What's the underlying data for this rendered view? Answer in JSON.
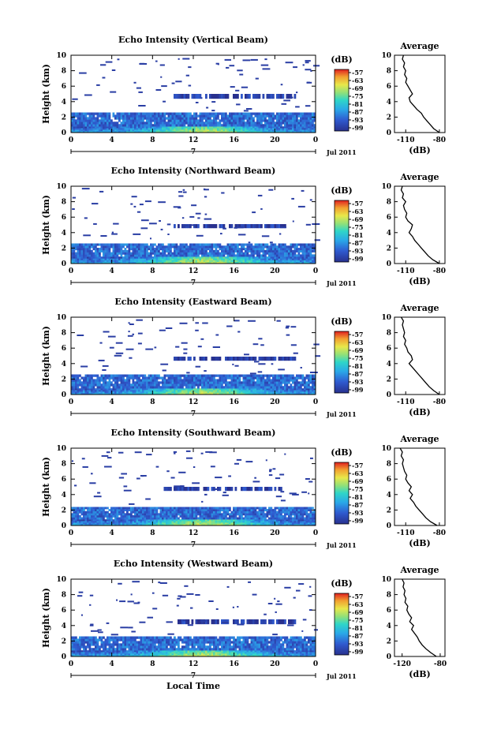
{
  "chart_data": [
    {
      "type": "heatmap",
      "title": "Echo Intensity (Vertical Beam)",
      "ylabel": "Height (km)",
      "ylim": [
        0,
        10
      ],
      "y_ticks": [
        "0",
        "2",
        "4",
        "6",
        "8",
        "10"
      ],
      "xlim": [
        0,
        24
      ],
      "x_ticks": [
        "0",
        "4",
        "8",
        "12",
        "16",
        "20",
        "0"
      ],
      "date_marker": "7",
      "date_label": "Jul 2011",
      "colorbar": {
        "label": "(dB)",
        "ticks": [
          "-57",
          "-63",
          "-69",
          "-75",
          "-81",
          "-87",
          "-93",
          "-99"
        ],
        "range": [
          -99,
          -57
        ]
      },
      "layers": [
        {
          "name": "surface strong echo",
          "y_range": [
            0,
            0.8
          ],
          "intensity_db": -78
        },
        {
          "name": "boundary layer",
          "y_range": [
            0.8,
            2.6
          ],
          "intensity_db": -92
        },
        {
          "name": "elevated layer",
          "y_range": [
            4.4,
            5.0
          ],
          "x_range": [
            10,
            22
          ],
          "intensity_db": -97
        }
      ],
      "average_profile": {
        "title": "Average",
        "xlabel": "(dB)",
        "x_ticks": [
          "-110",
          "-80"
        ],
        "xlim": [
          -120,
          -75
        ],
        "y_ticks": [
          "0",
          "2",
          "4",
          "6",
          "8",
          "10"
        ],
        "heights": [
          0,
          0.5,
          1,
          1.5,
          2,
          2.5,
          3,
          3.5,
          4,
          4.5,
          5,
          5.5,
          6,
          6.5,
          7,
          7.5,
          8,
          8.5,
          9,
          9.5,
          10
        ],
        "values": [
          -80,
          -85,
          -88,
          -91,
          -94,
          -96,
          -100,
          -103,
          -106,
          -107,
          -104,
          -106,
          -108,
          -110,
          -109,
          -111,
          -110,
          -112,
          -111,
          -113,
          -112
        ]
      }
    },
    {
      "type": "heatmap",
      "title": "Echo Intensity (Northward Beam)",
      "ylabel": "Height (km)",
      "ylim": [
        0,
        10
      ],
      "y_ticks": [
        "0",
        "2",
        "4",
        "6",
        "8",
        "10"
      ],
      "xlim": [
        0,
        24
      ],
      "x_ticks": [
        "0",
        "4",
        "8",
        "12",
        "16",
        "20",
        "0"
      ],
      "date_marker": "7",
      "date_label": "Jul 2011",
      "colorbar": {
        "label": "(dB)",
        "ticks": [
          "-57",
          "-63",
          "-69",
          "-75",
          "-81",
          "-87",
          "-93",
          "-99"
        ],
        "range": [
          -99,
          -57
        ]
      },
      "layers": [
        {
          "name": "surface strong echo",
          "y_range": [
            0,
            0.9
          ],
          "intensity_db": -78
        },
        {
          "name": "boundary layer",
          "y_range": [
            0.9,
            2.6
          ],
          "intensity_db": -92
        },
        {
          "name": "elevated layer",
          "y_range": [
            4.6,
            5.1
          ],
          "x_range": [
            10,
            21
          ],
          "intensity_db": -97
        }
      ],
      "average_profile": {
        "title": "Average",
        "xlabel": "(dB)",
        "x_ticks": [
          "-110",
          "-80"
        ],
        "xlim": [
          -120,
          -75
        ],
        "y_ticks": [
          "0",
          "2",
          "4",
          "6",
          "8",
          "10"
        ],
        "heights": [
          0,
          0.5,
          1,
          1.5,
          2,
          2.5,
          3,
          3.5,
          4,
          4.5,
          5,
          5.5,
          6,
          6.5,
          7,
          7.5,
          8,
          8.5,
          9,
          9.5,
          10
        ],
        "values": [
          -80,
          -86,
          -90,
          -93,
          -96,
          -99,
          -102,
          -104,
          -107,
          -105,
          -104,
          -108,
          -110,
          -109,
          -111,
          -112,
          -110,
          -113,
          -112,
          -114,
          -113
        ]
      }
    },
    {
      "type": "heatmap",
      "title": "Echo Intensity (Eastward Beam)",
      "ylabel": "Height (km)",
      "ylim": [
        0,
        10
      ],
      "y_ticks": [
        "0",
        "2",
        "4",
        "6",
        "8",
        "10"
      ],
      "xlim": [
        0,
        24
      ],
      "x_ticks": [
        "0",
        "4",
        "8",
        "12",
        "16",
        "20",
        "0"
      ],
      "date_marker": "7",
      "date_label": "Jul 2011",
      "colorbar": {
        "label": "(dB)",
        "ticks": [
          "-57",
          "-63",
          "-69",
          "-75",
          "-81",
          "-87",
          "-93",
          "-99"
        ],
        "range": [
          -99,
          -57
        ]
      },
      "layers": [
        {
          "name": "surface strong echo",
          "y_range": [
            0,
            0.8
          ],
          "intensity_db": -78
        },
        {
          "name": "boundary layer",
          "y_range": [
            0.8,
            2.6
          ],
          "intensity_db": -92
        },
        {
          "name": "elevated layer",
          "y_range": [
            4.4,
            4.9
          ],
          "x_range": [
            10,
            22
          ],
          "intensity_db": -97
        }
      ],
      "average_profile": {
        "title": "Average",
        "xlabel": "(dB)",
        "x_ticks": [
          "-110",
          "-80"
        ],
        "xlim": [
          -120,
          -75
        ],
        "y_ticks": [
          "0",
          "2",
          "4",
          "6",
          "8",
          "10"
        ],
        "heights": [
          0,
          0.5,
          1,
          1.5,
          2,
          2.5,
          3,
          3.5,
          4,
          4.5,
          5,
          5.5,
          6,
          6.5,
          7,
          7.5,
          8,
          8.5,
          9,
          9.5,
          10
        ],
        "values": [
          -80,
          -85,
          -89,
          -92,
          -95,
          -98,
          -101,
          -104,
          -107,
          -104,
          -105,
          -108,
          -109,
          -111,
          -110,
          -112,
          -111,
          -112,
          -113,
          -112,
          -114
        ]
      }
    },
    {
      "type": "heatmap",
      "title": "Echo Intensity (Southward Beam)",
      "ylabel": "Height (km)",
      "ylim": [
        0,
        10
      ],
      "y_ticks": [
        "0",
        "2",
        "4",
        "6",
        "8",
        "10"
      ],
      "xlim": [
        0,
        24
      ],
      "x_ticks": [
        "0",
        "4",
        "8",
        "12",
        "16",
        "20",
        "0"
      ],
      "date_marker": "7",
      "date_label": "Jul 2011",
      "colorbar": {
        "label": "(dB)",
        "ticks": [
          "-57",
          "-63",
          "-69",
          "-75",
          "-81",
          "-87",
          "-93",
          "-99"
        ],
        "range": [
          -99,
          -57
        ]
      },
      "layers": [
        {
          "name": "surface strong echo",
          "y_range": [
            0,
            0.8
          ],
          "intensity_db": -78
        },
        {
          "name": "boundary layer",
          "y_range": [
            0.8,
            2.4
          ],
          "intensity_db": -92
        },
        {
          "name": "elevated layer",
          "y_range": [
            4.5,
            5.0
          ],
          "x_range": [
            9,
            21
          ],
          "intensity_db": -97
        }
      ],
      "average_profile": {
        "title": "Average",
        "xlabel": "(dB)",
        "x_ticks": [
          "-110",
          "-80"
        ],
        "xlim": [
          -120,
          -75
        ],
        "y_ticks": [
          "0",
          "2",
          "4",
          "6",
          "8",
          "10"
        ],
        "heights": [
          0,
          0.5,
          1,
          1.5,
          2,
          2.5,
          3,
          3.5,
          4,
          4.5,
          5,
          5.5,
          6,
          6.5,
          7,
          7.5,
          8,
          8.5,
          9,
          9.5,
          10
        ],
        "values": [
          -82,
          -88,
          -92,
          -95,
          -98,
          -101,
          -103,
          -106,
          -104,
          -107,
          -105,
          -108,
          -110,
          -109,
          -111,
          -112,
          -113,
          -112,
          -114,
          -113,
          -115
        ]
      }
    },
    {
      "type": "heatmap",
      "title": "Echo Intensity (Westward Beam)",
      "ylabel": "Height (km)",
      "ylim": [
        0,
        10
      ],
      "y_ticks": [
        "0",
        "2",
        "4",
        "6",
        "8",
        "10"
      ],
      "xlim": [
        0,
        24
      ],
      "x_ticks": [
        "0",
        "4",
        "8",
        "12",
        "16",
        "20",
        "0"
      ],
      "xlabel": "Local Time",
      "date_marker": "7",
      "date_label": "Jul 2011",
      "colorbar": {
        "label": "(dB)",
        "ticks": [
          "-57",
          "-63",
          "-69",
          "-75",
          "-81",
          "-87",
          "-93",
          "-99"
        ],
        "range": [
          -99,
          -57
        ]
      },
      "layers": [
        {
          "name": "surface strong echo",
          "y_range": [
            0,
            0.8
          ],
          "intensity_db": -78
        },
        {
          "name": "boundary layer",
          "y_range": [
            0.8,
            2.6
          ],
          "intensity_db": -92
        },
        {
          "name": "elevated layer",
          "y_range": [
            4.2,
            4.8
          ],
          "x_range": [
            10,
            22
          ],
          "intensity_db": -97
        }
      ],
      "average_profile": {
        "title": "Average",
        "xlabel": "(dB)",
        "x_ticks": [
          "-120",
          "-80"
        ],
        "xlim": [
          -128,
          -75
        ],
        "y_ticks": [
          "0",
          "2",
          "4",
          "6",
          "8",
          "10"
        ],
        "heights": [
          0,
          0.5,
          1,
          1.5,
          2,
          2.5,
          3,
          3.5,
          4,
          4.5,
          5,
          5.5,
          6,
          6.5,
          7,
          7.5,
          8,
          8.5,
          9,
          9.5,
          10
        ],
        "values": [
          -84,
          -90,
          -95,
          -99,
          -102,
          -104,
          -107,
          -110,
          -108,
          -112,
          -110,
          -113,
          -115,
          -114,
          -117,
          -116,
          -118,
          -117,
          -119,
          -118,
          -120
        ]
      }
    }
  ]
}
